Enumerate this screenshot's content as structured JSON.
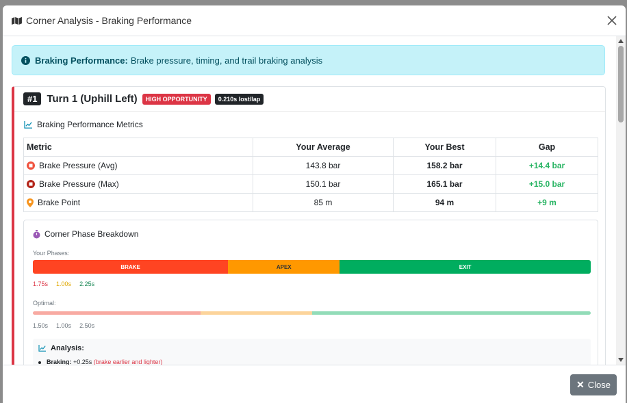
{
  "modal": {
    "title": "Corner Analysis - Braking Performance",
    "footer_close_label": "Close"
  },
  "info_alert": {
    "bold": "Braking Performance:",
    "text": "Brake pressure, timing, and trail braking analysis"
  },
  "corner": {
    "rank": "#1",
    "name": "Turn 1 (Uphill Left)",
    "opportunity_badge": "HIGH OPPORTUNITY",
    "loss_badge": "0.210s lost/lap"
  },
  "metrics": {
    "title": "Braking Performance Metrics",
    "headers": [
      "Metric",
      "Your Average",
      "Your Best",
      "Gap"
    ],
    "rows": [
      {
        "icon": "stop-circle-outline-icon",
        "label": "Brake Pressure (Avg)",
        "average": "143.8 bar",
        "best": "158.2 bar",
        "gap": "+14.4 bar"
      },
      {
        "icon": "stop-circle-filled-icon",
        "label": "Brake Pressure (Max)",
        "average": "150.1 bar",
        "best": "165.1 bar",
        "gap": "+15.0 bar"
      },
      {
        "icon": "map-pin-icon",
        "label": "Brake Point",
        "average": "85 m",
        "best": "94 m",
        "gap": "+9 m"
      }
    ]
  },
  "phases": {
    "title": "Corner Phase Breakdown",
    "your_label": "Your Phases:",
    "your": [
      {
        "name": "BRAKE",
        "fraction": 0.35,
        "color": "#ff4422",
        "text_color": "#ffffff"
      },
      {
        "name": "APEX",
        "fraction": 0.2,
        "color": "#ff9800",
        "text_color": "#333333"
      },
      {
        "name": "EXIT",
        "fraction": 0.45,
        "color": "#00ad5f",
        "text_color": "#ffffff"
      }
    ],
    "your_times": [
      {
        "value": "1.75s",
        "color": "#dc3545"
      },
      {
        "value": "1.00s",
        "color": "#e0a800"
      },
      {
        "value": "2.25s",
        "color": "#198754"
      }
    ],
    "optimal_label": "Optimal:",
    "optimal": [
      {
        "fraction": 0.3,
        "color": "#f8aaa2"
      },
      {
        "fraction": 0.2,
        "color": "#fcd49b"
      },
      {
        "fraction": 0.5,
        "color": "#92dcb8"
      }
    ],
    "optimal_times": [
      "1.50s",
      "1.00s",
      "2.50s"
    ]
  },
  "analysis": {
    "title": "Analysis:",
    "item_label": "Braking:",
    "item_value": "+0.25s",
    "item_note": "(brake earlier and lighter)"
  }
}
